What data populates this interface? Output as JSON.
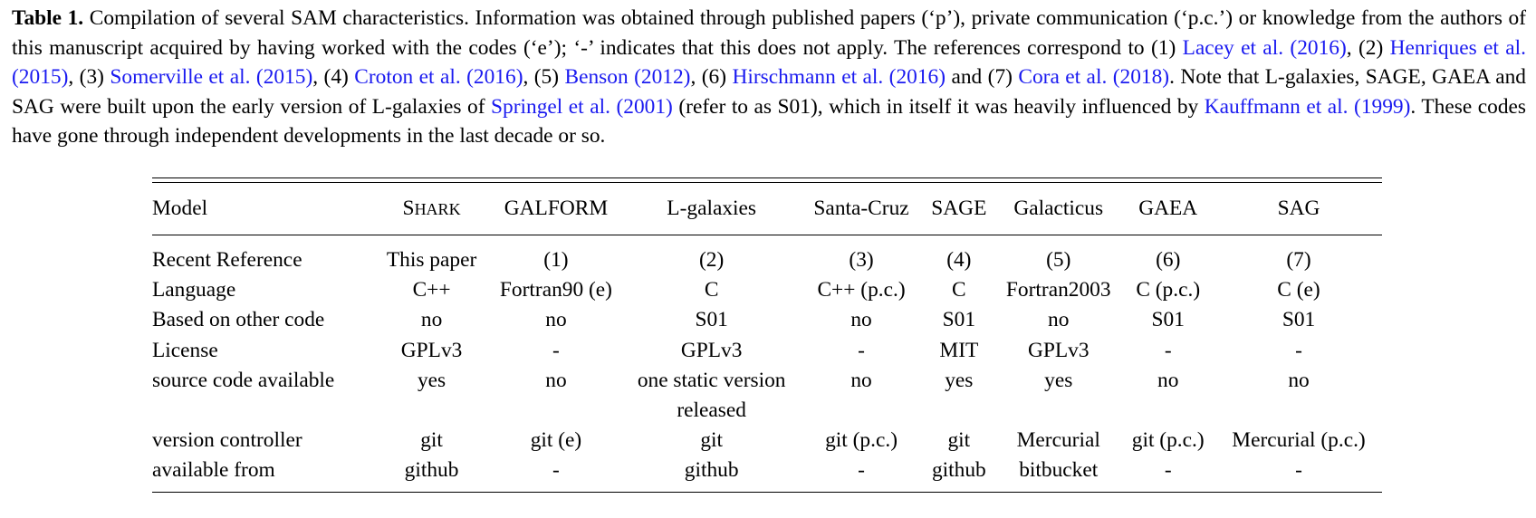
{
  "caption": {
    "label": "Table 1.",
    "seg1": " Compilation of several SAM characteristics. Information was obtained through published papers (‘p’), private communication (‘p.c.’) or knowledge from the authors of this manuscript acquired by having worked with the codes (‘e’); ‘-’ indicates that this does not apply. The references correspond to (1) ",
    "cite1_name": "Lacey et al.",
    "cite1_year": "2016",
    "seg2": ", (2) ",
    "cite2_name": "Henriques et al.",
    "cite2_year": "2015",
    "seg3": ", (3) ",
    "cite3_name": "Somerville et al.",
    "cite3_year": "2015",
    "seg4": ", (4) ",
    "cite4_name": "Croton et al.",
    "cite4_year": "2016",
    "seg5": ", (5) ",
    "cite5_name": "Benson",
    "cite5_year": "2012",
    "seg6": ", (6) ",
    "cite6_name": "Hirschmann et al.",
    "cite6_year": "2016",
    "seg7": " and (7) ",
    "cite7_name": "Cora et al.",
    "cite7_year": "2018",
    "seg8": ". Note that L-galaxies, SAGE, GAEA and SAG were built upon the early version of L-galaxies of ",
    "cite8_name": "Springel et al.",
    "cite8_year": "2001",
    "seg9": " (refer to as S01), which in itself it was heavily influenced by ",
    "cite9_name": "Kauffmann et al.",
    "cite9_year": "1999",
    "seg10": ". These codes have gone through independent developments in the last decade or so."
  },
  "table": {
    "header_model": "Model",
    "shark_first": "S",
    "shark_rest": "HARK",
    "columns": [
      "GALFORM",
      "L-galaxies",
      "Santa-Cruz",
      "SAGE",
      "Galacticus",
      "GAEA",
      "SAG"
    ],
    "rows": [
      {
        "label": "Recent Reference",
        "cells": [
          "This paper",
          "(1)",
          "(2)",
          "(3)",
          "(4)",
          "(5)",
          "(6)",
          "(7)"
        ]
      },
      {
        "label": "Language",
        "cells": [
          "C++",
          "Fortran90 (e)",
          "C",
          "C++ (p.c.)",
          "C",
          "Fortran2003",
          "C (p.c.)",
          "C (e)"
        ]
      },
      {
        "label": "Based on other code",
        "cells": [
          "no",
          "no",
          "S01",
          "no",
          "S01",
          "no",
          "S01",
          "S01"
        ]
      },
      {
        "label": "License",
        "cells": [
          "GPLv3",
          "-",
          "GPLv3",
          "-",
          "MIT",
          "GPLv3",
          "-",
          "-"
        ]
      },
      {
        "label": "source code available",
        "cells": [
          "yes",
          "no",
          "one static version",
          "no",
          "yes",
          "yes",
          "no",
          "no"
        ],
        "extra": "released"
      },
      {
        "label": "version controller",
        "cells": [
          "git",
          "git (e)",
          "git",
          "git (p.c.)",
          "git",
          "Mercurial",
          "git (p.c.)",
          "Mercurial (p.c.)"
        ]
      },
      {
        "label": "available from",
        "cells": [
          "github",
          "-",
          "github",
          "-",
          "github",
          "bitbucket",
          "-",
          "-"
        ]
      }
    ]
  },
  "colors": {
    "citation": "#1a1af0",
    "text": "#000000"
  }
}
